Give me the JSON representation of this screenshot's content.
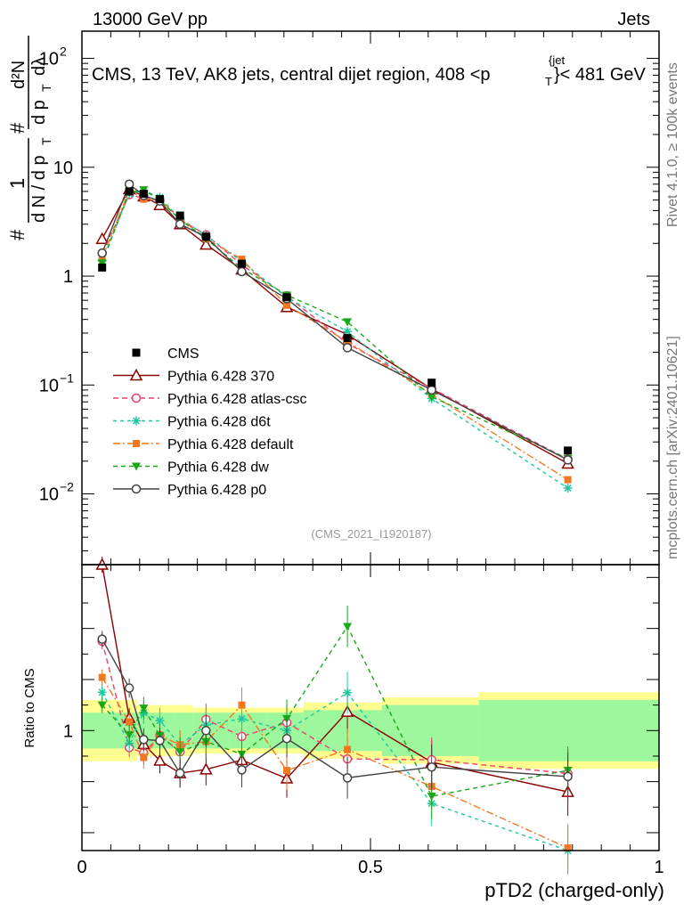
{
  "header": {
    "left": "13000 GeV pp",
    "right": "Jets"
  },
  "side_text": {
    "rivet": "Rivet 4.1.0, ≥ 100k events",
    "mcplots": "mcplots.cern.ch [arXiv:2401.10621]"
  },
  "chart_data": {
    "type": "line",
    "title": "CMS, 13 TeV, AK8 jets, central dijet region, 408 <p",
    "title_sub": "T",
    "title_sup": "{jet",
    "title_tail": "}< 481 GeV",
    "analysis_tag": "(CMS_2021_I1920187)",
    "xlabel": "pTD2 (charged-only)",
    "ylabel_main": {
      "hash": "#",
      "one": "1",
      "d_n_lead": "d N / d p",
      "sub_t": "T",
      "d2n": "d²N",
      "d_pt_dl": "d p",
      "d_lambda": "dλ"
    },
    "ylabel_ratio": "Ratio to CMS",
    "xlim": [
      0,
      1
    ],
    "ylim_main_log10": [
      -2.65,
      2.25
    ],
    "ylim_ratio": [
      0.53,
      1.65
    ],
    "x_ticks": [
      {
        "value": 0,
        "label": "0"
      },
      {
        "value": 0.5,
        "label": "0.5"
      },
      {
        "value": 1,
        "label": "1"
      }
    ],
    "y_ticks_main": [
      {
        "value": 100,
        "base": "10",
        "exp": "2"
      },
      {
        "value": 10,
        "base": "10",
        "exp": ""
      },
      {
        "value": 1,
        "base": "1",
        "exp": ""
      },
      {
        "value": 0.1,
        "base": "10",
        "exp": "−1"
      },
      {
        "value": 0.01,
        "base": "10",
        "exp": "−2"
      }
    ],
    "y_ticks_ratio": [
      {
        "value": 1,
        "label": "1"
      }
    ],
    "bin_edges": [
      0.0,
      0.064,
      0.096,
      0.128,
      0.16,
      0.192,
      0.256,
      0.32,
      0.384,
      0.52,
      0.688,
      1.0
    ],
    "x": [
      0.035,
      0.082,
      0.107,
      0.135,
      0.17,
      0.215,
      0.277,
      0.355,
      0.46,
      0.606,
      0.842
    ],
    "cms": {
      "name": "CMS",
      "values": [
        1.2,
        6.0,
        5.7,
        5.1,
        3.6,
        2.3,
        1.3,
        0.64,
        0.27,
        0.105,
        0.025
      ],
      "band_inner": [
        0.07,
        0.07,
        0.07,
        0.07,
        0.07,
        0.07,
        0.07,
        0.07,
        0.08,
        0.1,
        0.12
      ],
      "band_outer": [
        0.12,
        0.12,
        0.1,
        0.1,
        0.1,
        0.09,
        0.09,
        0.09,
        0.11,
        0.13,
        0.15
      ]
    },
    "series": [
      {
        "name": "Pythia 6.428 370",
        "color": "#8b0000",
        "marker": "triangle-open",
        "dash": "",
        "values": [
          2.2,
          6.3,
          5.4,
          4.5,
          3.0,
          1.95,
          1.15,
          0.52,
          0.29,
          0.092,
          0.019
        ]
      },
      {
        "name": "Pythia 6.428 atlas-csc",
        "color": "#e8426e",
        "marker": "circle-open",
        "dash": "6,4",
        "values": [
          1.62,
          5.6,
          5.2,
          5.0,
          3.3,
          2.4,
          1.27,
          0.66,
          0.24,
          0.093,
          0.0208
        ]
      },
      {
        "name": "Pythia 6.428 d6t",
        "color": "#1fc8a0",
        "marker": "star",
        "dash": "4,4",
        "values": [
          1.38,
          5.7,
          6.1,
          5.3,
          3.4,
          2.35,
          1.36,
          0.64,
          0.31,
          0.075,
          0.0113
        ]
      },
      {
        "name": "Pythia 6.428 default",
        "color": "#f07820",
        "marker": "square-filled",
        "dash": "8,3,2,3",
        "values": [
          1.45,
          6.2,
          5.1,
          5.0,
          3.4,
          2.2,
          1.43,
          0.54,
          0.25,
          0.082,
          0.0135
        ]
      },
      {
        "name": "Pythia 6.428 dw",
        "color": "#1aa81a",
        "marker": "triangle-down-filled",
        "dash": "5,4",
        "values": [
          1.32,
          5.9,
          6.2,
          5.0,
          3.3,
          2.2,
          1.18,
          0.67,
          0.38,
          0.078,
          0.0211
        ]
      },
      {
        "name": "Pythia 6.428 p0",
        "color": "#444444",
        "marker": "circle-open",
        "dash": "",
        "values": [
          1.63,
          7.0,
          5.5,
          4.9,
          3.0,
          2.3,
          1.1,
          0.62,
          0.22,
          0.09,
          0.0205
        ]
      }
    ],
    "legend_position": "lower-left",
    "grid": false
  }
}
